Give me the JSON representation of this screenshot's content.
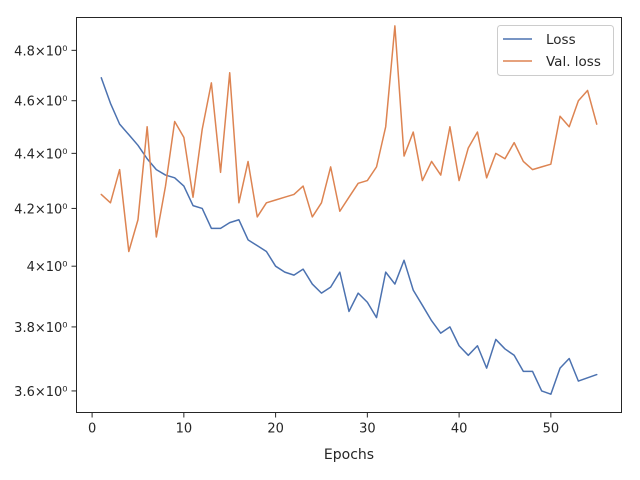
{
  "chart_data": {
    "type": "line",
    "title": "",
    "xlabel": "Epochs",
    "ylabel": "",
    "yscale": "log",
    "xlim": [
      -1.7,
      57.7
    ],
    "ylim": [
      3.535,
      4.935
    ],
    "grid": false,
    "legend_position": "top-right",
    "x_ticks": [
      0,
      10,
      20,
      30,
      40,
      50
    ],
    "x_tick_labels": [
      "0",
      "10",
      "20",
      "30",
      "40",
      "50"
    ],
    "y_ticks": [
      3.6,
      3.8,
      4.0,
      4.2,
      4.4,
      4.6,
      4.8
    ],
    "y_tick_labels": [
      "3.6×10⁰",
      "3.8×10⁰",
      "4×10⁰",
      "4.2×10⁰",
      "4.4×10⁰",
      "4.6×10⁰",
      "4.8×10⁰"
    ],
    "x": [
      1,
      2,
      3,
      4,
      5,
      6,
      7,
      8,
      9,
      10,
      11,
      12,
      13,
      14,
      15,
      16,
      17,
      18,
      19,
      20,
      21,
      22,
      23,
      24,
      25,
      26,
      27,
      28,
      29,
      30,
      31,
      32,
      33,
      34,
      35,
      36,
      37,
      38,
      39,
      40,
      41,
      42,
      43,
      44,
      45,
      46,
      47,
      48,
      49,
      50,
      51,
      52,
      53,
      54,
      55
    ],
    "series": [
      {
        "name": "Loss",
        "color": "#4c72b0",
        "values": [
          4.69,
          4.59,
          4.51,
          4.47,
          4.43,
          4.38,
          4.34,
          4.32,
          4.31,
          4.28,
          4.21,
          4.2,
          4.13,
          4.13,
          4.15,
          4.16,
          4.09,
          4.07,
          4.05,
          4.0,
          3.98,
          3.97,
          3.99,
          3.94,
          3.91,
          3.93,
          3.98,
          3.85,
          3.91,
          3.88,
          3.83,
          3.98,
          3.94,
          4.02,
          3.92,
          3.87,
          3.82,
          3.78,
          3.8,
          3.74,
          3.71,
          3.74,
          3.67,
          3.76,
          3.73,
          3.71,
          3.66,
          3.66,
          3.6,
          3.59,
          3.67,
          3.7,
          3.63,
          3.64,
          3.65
        ]
      },
      {
        "name": "Val. loss",
        "color": "#dd8452",
        "values": [
          4.25,
          4.22,
          4.34,
          4.05,
          4.16,
          4.5,
          4.1,
          4.28,
          4.52,
          4.46,
          4.24,
          4.49,
          4.67,
          4.33,
          4.71,
          4.22,
          4.37,
          4.17,
          4.22,
          4.23,
          4.24,
          4.25,
          4.28,
          4.17,
          4.22,
          4.35,
          4.19,
          4.24,
          4.29,
          4.3,
          4.35,
          4.5,
          4.9,
          4.39,
          4.48,
          4.3,
          4.37,
          4.32,
          4.5,
          4.3,
          4.42,
          4.48,
          4.31,
          4.4,
          4.38,
          4.44,
          4.37,
          4.34,
          4.35,
          4.36,
          4.54,
          4.5,
          4.6,
          4.64,
          4.51
        ]
      }
    ]
  }
}
